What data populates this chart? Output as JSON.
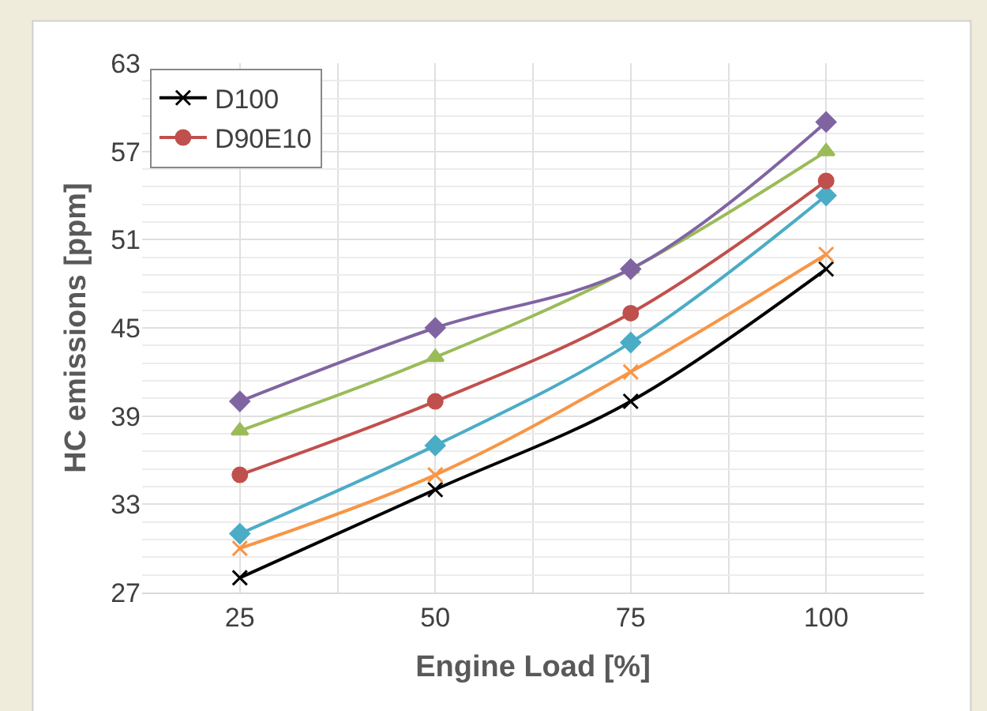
{
  "chart_data": {
    "type": "line",
    "xlabel": "Engine Load [%]",
    "ylabel": "HC emissions [ppm]",
    "x": [
      25,
      50,
      75,
      100
    ],
    "xlim": [
      12.5,
      112.5
    ],
    "xticks": [
      25,
      50,
      75,
      100
    ],
    "ylim": [
      27,
      63
    ],
    "yticks": [
      27,
      33,
      39,
      45,
      51,
      57,
      63
    ],
    "grid": true,
    "legend": "top left",
    "series": [
      {
        "name": "D100",
        "color": "#000000",
        "marker": "cross",
        "values": [
          28,
          34,
          40,
          49
        ]
      },
      {
        "color": "#f79646",
        "marker": "cross",
        "values": [
          30,
          35,
          42,
          50
        ]
      },
      {
        "color": "#4bacc6",
        "marker": "diamond",
        "values": [
          31,
          37,
          44,
          54
        ]
      },
      {
        "name": "D90E10",
        "color": "#c0504d",
        "marker": "circle",
        "values": [
          35,
          40,
          46,
          55
        ]
      },
      {
        "color": "#9bbb59",
        "marker": "triangle",
        "values": [
          38,
          43,
          49,
          57
        ]
      },
      {
        "color": "#8064a2",
        "marker": "diamond",
        "values": [
          40,
          45,
          49,
          59
        ]
      }
    ]
  }
}
